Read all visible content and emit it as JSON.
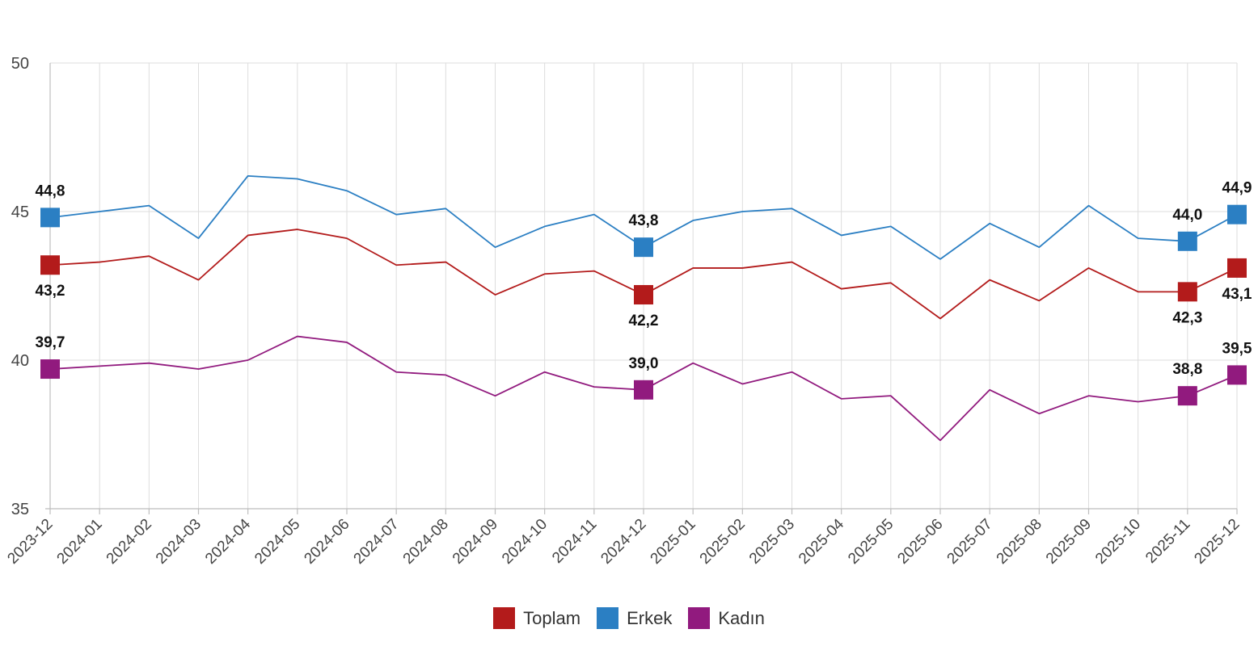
{
  "chart_data": {
    "type": "line",
    "x": [
      "2023-12",
      "2024-01",
      "2024-02",
      "2024-03",
      "2024-04",
      "2024-05",
      "2024-06",
      "2024-07",
      "2024-08",
      "2024-09",
      "2024-10",
      "2024-11",
      "2024-12",
      "2025-01",
      "2025-02",
      "2025-03",
      "2025-04",
      "2025-05",
      "2025-06",
      "2025-07",
      "2025-08",
      "2025-09",
      "2025-10",
      "2025-11",
      "2025-12"
    ],
    "ylim": [
      35,
      50
    ],
    "yticks": [
      35,
      40,
      45,
      50
    ],
    "grid": true,
    "legend_position": "bottom-center",
    "series": [
      {
        "name": "Toplam",
        "color": "#b31b1b",
        "values": [
          43.2,
          43.3,
          43.5,
          42.7,
          44.2,
          44.4,
          44.1,
          43.2,
          43.3,
          42.2,
          42.9,
          43.0,
          42.2,
          43.1,
          43.1,
          43.3,
          42.4,
          42.6,
          41.4,
          42.7,
          42.0,
          43.1,
          42.3,
          42.3,
          43.1
        ],
        "markers": [
          {
            "index": 0,
            "label": "43,2",
            "label_side": "below"
          },
          {
            "index": 12,
            "label": "42,2",
            "label_side": "below"
          },
          {
            "index": 23,
            "label": "42,3",
            "label_side": "below"
          },
          {
            "index": 24,
            "label": "43,1",
            "label_side": "below"
          }
        ]
      },
      {
        "name": "Erkek",
        "color": "#2b7fc3",
        "values": [
          44.8,
          45.0,
          45.2,
          44.1,
          46.2,
          46.1,
          45.7,
          44.9,
          45.1,
          43.8,
          44.5,
          44.9,
          43.8,
          44.7,
          45.0,
          45.1,
          44.2,
          44.5,
          43.4,
          44.6,
          43.8,
          45.2,
          44.1,
          44.0,
          44.9
        ],
        "markers": [
          {
            "index": 0,
            "label": "44,8",
            "label_side": "above"
          },
          {
            "index": 12,
            "label": "43,8",
            "label_side": "above"
          },
          {
            "index": 23,
            "label": "44,0",
            "label_side": "above"
          },
          {
            "index": 24,
            "label": "44,9",
            "label_side": "above"
          }
        ]
      },
      {
        "name": "Kadın",
        "color": "#911a7e",
        "values": [
          39.7,
          39.8,
          39.9,
          39.7,
          40.0,
          40.8,
          40.6,
          39.6,
          39.5,
          38.8,
          39.6,
          39.1,
          39.0,
          39.9,
          39.2,
          39.6,
          38.7,
          38.8,
          37.3,
          39.0,
          38.2,
          38.8,
          38.6,
          38.8,
          39.5
        ],
        "markers": [
          {
            "index": 0,
            "label": "39,7",
            "label_side": "above"
          },
          {
            "index": 12,
            "label": "39,0",
            "label_side": "above"
          },
          {
            "index": 23,
            "label": "38,8",
            "label_side": "above"
          },
          {
            "index": 24,
            "label": "39,5",
            "label_side": "above"
          }
        ]
      }
    ]
  }
}
